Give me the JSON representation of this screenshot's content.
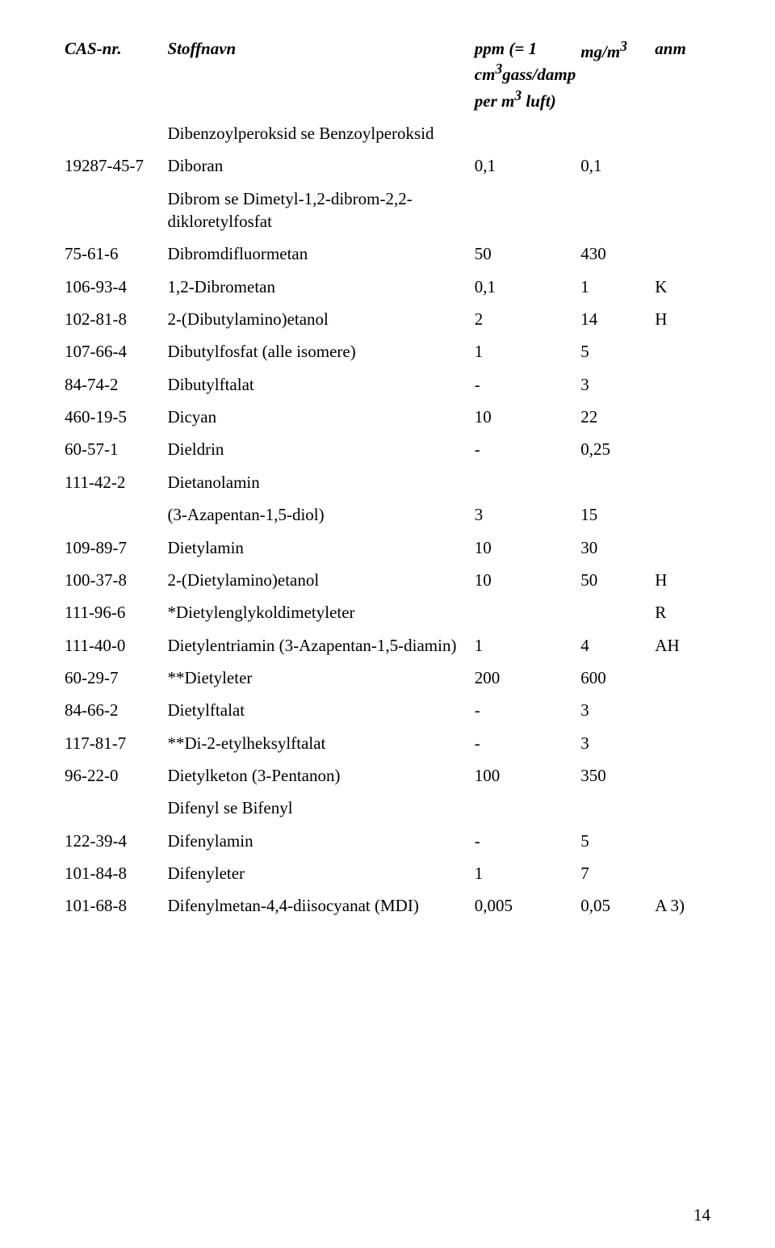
{
  "header": {
    "cas": "CAS-nr.",
    "name": "Stoffnavn",
    "ppm_line1": "ppm (= 1",
    "ppm_line2": "cm",
    "ppm_sup1": "3",
    "ppm_line2b": "gass/damp",
    "ppm_line3a": "per m",
    "ppm_sup2": "3",
    "ppm_line3b": " luft)",
    "mgm3a": "mg/m",
    "mgm3sup": "3",
    "anm": "anm"
  },
  "rows": [
    {
      "cas": "",
      "name": "Dibenzoylperoksid se Benzoylperoksid",
      "ppm": "",
      "mgm3": "",
      "anm": ""
    },
    {
      "cas": "19287-45-7",
      "name": "Diboran",
      "ppm": "0,1",
      "mgm3": "0,1",
      "anm": ""
    },
    {
      "cas": "",
      "name": "Dibrom se Dimetyl-1,2-dibrom-2,2-dikloretylfosfat",
      "ppm": "",
      "mgm3": "",
      "anm": ""
    },
    {
      "cas": "75-61-6",
      "name": "Dibromdifluormetan",
      "ppm": "50",
      "mgm3": "430",
      "anm": ""
    },
    {
      "cas": "106-93-4",
      "name": "1,2-Dibrometan",
      "ppm": "0,1",
      "mgm3": "1",
      "anm": "K"
    },
    {
      "cas": "102-81-8",
      "name": "2-(Dibutylamino)etanol",
      "ppm": "2",
      "mgm3": "14",
      "anm": "H"
    },
    {
      "cas": "107-66-4",
      "name": "Dibutylfosfat (alle isomere)",
      "ppm": "1",
      "mgm3": "5",
      "anm": ""
    },
    {
      "cas": "84-74-2",
      "name": "Dibutylftalat",
      "ppm": "-",
      "mgm3": "3",
      "anm": ""
    },
    {
      "cas": "460-19-5",
      "name": "Dicyan",
      "ppm": "10",
      "mgm3": "22",
      "anm": ""
    },
    {
      "cas": "60-57-1",
      "name": "Dieldrin",
      "ppm": "-",
      "mgm3": "0,25",
      "anm": ""
    },
    {
      "cas": "111-42-2",
      "name": "Dietanolamin",
      "ppm": "",
      "mgm3": "",
      "anm": ""
    },
    {
      "cas": "",
      "name": "(3-Azapentan-1,5-diol)",
      "ppm": "3",
      "mgm3": "15",
      "anm": ""
    },
    {
      "cas": "109-89-7",
      "name": "Dietylamin",
      "ppm": "10",
      "mgm3": "30",
      "anm": ""
    },
    {
      "cas": "100-37-8",
      "name": "2-(Dietylamino)etanol",
      "ppm": "10",
      "mgm3": "50",
      "anm": "H"
    },
    {
      "cas": "111-96-6",
      "name": "*Dietylenglykoldimetyleter",
      "ppm": "",
      "mgm3": "",
      "anm": "R"
    },
    {
      "cas": "111-40-0",
      "name": "Dietylentriamin (3-Azapentan-1,5-diamin)",
      "ppm": "1",
      "mgm3": "4",
      "anm": "AH"
    },
    {
      "cas": "60-29-7",
      "name": "**Dietyleter",
      "ppm": "200",
      "mgm3": "600",
      "anm": ""
    },
    {
      "cas": "84-66-2",
      "name": "Dietylftalat",
      "ppm": "-",
      "mgm3": "3",
      "anm": ""
    },
    {
      "cas": "117-81-7",
      "name": "**Di-2-etylheksylftalat",
      "ppm": "-",
      "mgm3": "3",
      "anm": ""
    },
    {
      "cas": "96-22-0",
      "name": "Dietylketon (3-Pentanon)",
      "ppm": "100",
      "mgm3": "350",
      "anm": ""
    },
    {
      "cas": "",
      "name": "Difenyl se Bifenyl",
      "ppm": "",
      "mgm3": "",
      "anm": ""
    },
    {
      "cas": "122-39-4",
      "name": "Difenylamin",
      "ppm": "-",
      "mgm3": "5",
      "anm": ""
    },
    {
      "cas": "101-84-8",
      "name": "Difenyleter",
      "ppm": "1",
      "mgm3": "7",
      "anm": ""
    },
    {
      "cas": "101-68-8",
      "name": "Difenylmetan-4,4-diisocyanat (MDI)",
      "ppm": "0,005",
      "mgm3": "0,05",
      "anm": "A 3)"
    }
  ],
  "page_number": "14"
}
